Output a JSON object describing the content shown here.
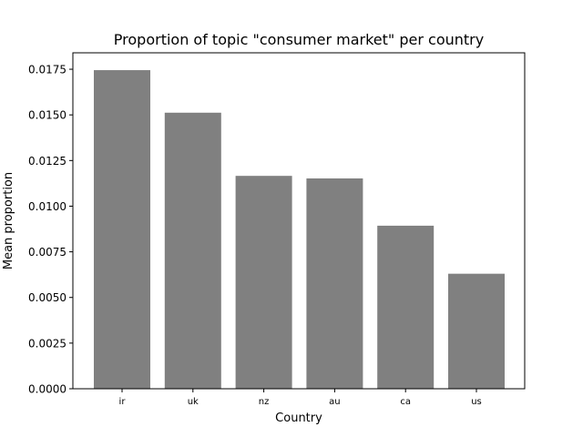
{
  "chart_data": {
    "type": "bar",
    "title": "Proportion of topic \"consumer market\" per country",
    "xlabel": "Country",
    "ylabel": "Mean proportion",
    "categories": [
      "ir",
      "uk",
      "nz",
      "au",
      "ca",
      "us"
    ],
    "values": [
      0.01745,
      0.01512,
      0.01166,
      0.01152,
      0.00893,
      0.0063
    ],
    "ylim": [
      0,
      0.0184
    ],
    "yticks": [
      0.0,
      0.0025,
      0.005,
      0.0075,
      0.01,
      0.0125,
      0.015,
      0.0175
    ],
    "ytick_labels": [
      "0.0000",
      "0.0025",
      "0.0050",
      "0.0075",
      "0.0100",
      "0.0125",
      "0.0150",
      "0.0175"
    ],
    "bar_color": "#808080",
    "grid": false,
    "legend": "none"
  }
}
